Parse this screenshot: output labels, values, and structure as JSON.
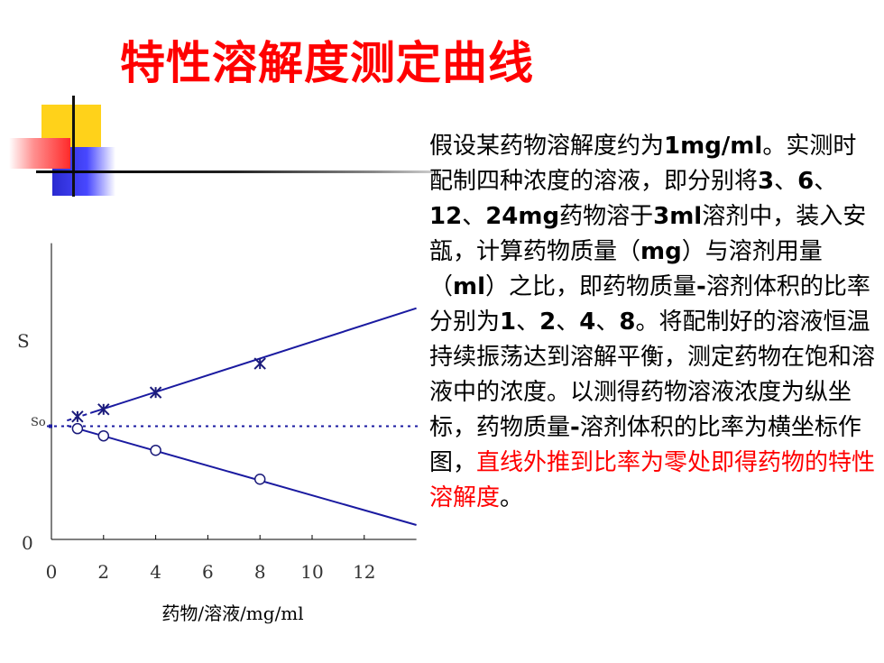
{
  "slide": {
    "title": "特性溶解度测定曲线"
  },
  "paragraph": {
    "segments": [
      {
        "text": "假设某药物溶解度约为",
        "bold": false,
        "red": false
      },
      {
        "text": "1mg/ml",
        "bold": true,
        "red": false
      },
      {
        "text": "。实测时配制四种浓度的溶液，即分别将",
        "bold": false,
        "red": false
      },
      {
        "text": "3",
        "bold": true,
        "red": false
      },
      {
        "text": "、",
        "bold": false,
        "red": false
      },
      {
        "text": "6",
        "bold": true,
        "red": false
      },
      {
        "text": "、",
        "bold": false,
        "red": false
      },
      {
        "text": "12",
        "bold": true,
        "red": false
      },
      {
        "text": "、",
        "bold": false,
        "red": false
      },
      {
        "text": "24mg",
        "bold": true,
        "red": false
      },
      {
        "text": "药物溶于",
        "bold": false,
        "red": false
      },
      {
        "text": "3ml",
        "bold": true,
        "red": false
      },
      {
        "text": "溶剂中，装入安瓿，计算药物质量（",
        "bold": false,
        "red": false
      },
      {
        "text": "mg",
        "bold": true,
        "red": false
      },
      {
        "text": "）与溶剂用量（",
        "bold": false,
        "red": false
      },
      {
        "text": "ml",
        "bold": true,
        "red": false
      },
      {
        "text": "）之比，即药物质量",
        "bold": false,
        "red": false
      },
      {
        "text": "-",
        "bold": true,
        "red": false
      },
      {
        "text": "溶剂体积的比率分别为",
        "bold": false,
        "red": false
      },
      {
        "text": "1",
        "bold": true,
        "red": false
      },
      {
        "text": "、",
        "bold": false,
        "red": false
      },
      {
        "text": "2",
        "bold": true,
        "red": false
      },
      {
        "text": "、",
        "bold": false,
        "red": false
      },
      {
        "text": "4",
        "bold": true,
        "red": false
      },
      {
        "text": "、",
        "bold": false,
        "red": false
      },
      {
        "text": "8",
        "bold": true,
        "red": false
      },
      {
        "text": "。将配制好的溶液恒温持续振荡达到溶解平衡，测定药物在饱和溶液中的浓度。以测得药物溶液浓度为纵坐标，药物质量",
        "bold": false,
        "red": false
      },
      {
        "text": "-",
        "bold": true,
        "red": false
      },
      {
        "text": "溶剂体积的比率为横坐标作图，",
        "bold": false,
        "red": false
      },
      {
        "text": "直线外推到比率为零处即得药物的特性溶解度",
        "bold": false,
        "red": true
      },
      {
        "text": "。",
        "bold": false,
        "red": false
      }
    ]
  },
  "chart_data": {
    "type": "line",
    "xlabel": "药物/溶液/mg/ml",
    "ylabel": "S",
    "x_ticks": [
      "0",
      "2",
      "4",
      "6",
      "8",
      "10",
      "12"
    ],
    "xlim": [
      0,
      14
    ],
    "ylim": [
      0,
      12
    ],
    "y_tick_labels": [
      "0"
    ],
    "reference_line": {
      "label": "So",
      "y": 4.7,
      "style": "dotted"
    },
    "series": [
      {
        "marker": "asterisk",
        "points": [
          [
            1,
            5.1
          ],
          [
            2,
            5.4
          ],
          [
            4,
            6.1
          ],
          [
            8,
            7.3
          ]
        ],
        "fit_line": [
          [
            1.5,
            5.25
          ],
          [
            14,
            9.6
          ]
        ]
      },
      {
        "marker": "circle",
        "points": [
          [
            1,
            4.6
          ],
          [
            2,
            4.3
          ],
          [
            4,
            3.7
          ],
          [
            8,
            2.5
          ]
        ],
        "fit_line": [
          [
            1,
            4.6
          ],
          [
            14,
            0.6
          ]
        ]
      }
    ],
    "colors": {
      "line": "#1a1aa0",
      "axis": "#000000",
      "marker": "#1a1a7a"
    }
  }
}
